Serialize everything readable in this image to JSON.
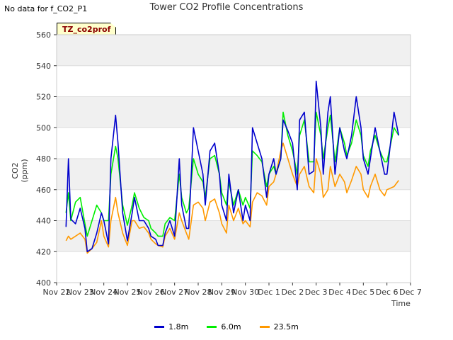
{
  "notice": "No data for f_CO2_P1",
  "tag": "TZ_co2prof",
  "chart_data": {
    "type": "line",
    "title": "Tower CO2 Profile Concentrations",
    "xlabel": "Time",
    "ylabel": "CO2 (ppm)",
    "ylim": [
      400,
      560
    ],
    "yticks": [
      400,
      420,
      440,
      460,
      480,
      500,
      520,
      540,
      560
    ],
    "xlim": [
      0,
      15
    ],
    "xtick_labels": [
      "Nov 22",
      "Nov 23",
      "Nov 24",
      "Nov 25",
      "Nov 26",
      "Nov 27",
      "Nov 28",
      "Nov 29",
      "Nov 30",
      "Dec 1",
      "Dec 2",
      "Dec 3",
      "Dec 4",
      "Dec 5",
      "Dec 6",
      "Dec 7"
    ],
    "grid": "horizontal bands",
    "legend_position": "bottom",
    "series": [
      {
        "name": "1.8m",
        "color": "#0000cc",
        "x": [
          0.4,
          0.5,
          0.6,
          0.8,
          1.0,
          1.2,
          1.3,
          1.5,
          1.7,
          1.9,
          2.0,
          2.2,
          2.3,
          2.5,
          2.6,
          2.8,
          3.0,
          3.2,
          3.3,
          3.5,
          3.7,
          3.9,
          4.0,
          4.2,
          4.3,
          4.5,
          4.6,
          4.8,
          5.0,
          5.2,
          5.3,
          5.5,
          5.6,
          5.8,
          6.0,
          6.2,
          6.3,
          6.5,
          6.7,
          6.9,
          7.0,
          7.2,
          7.3,
          7.5,
          7.7,
          7.9,
          8.0,
          8.2,
          8.3,
          8.5,
          8.7,
          8.9,
          9.0,
          9.2,
          9.3,
          9.5,
          9.6,
          9.8,
          10.0,
          10.2,
          10.3,
          10.5,
          10.7,
          10.9,
          11.0,
          11.2,
          11.3,
          11.5,
          11.6,
          11.8,
          12.0,
          12.2,
          12.3,
          12.5,
          12.7,
          12.9,
          13.0,
          13.2,
          13.3,
          13.5,
          13.7,
          13.9,
          14.0,
          14.3,
          14.5
        ],
        "values": [
          436,
          480,
          441,
          438,
          448,
          435,
          420,
          422,
          432,
          445,
          440,
          425,
          480,
          508,
          490,
          445,
          427,
          445,
          455,
          440,
          440,
          435,
          430,
          428,
          424,
          424,
          432,
          440,
          430,
          480,
          450,
          435,
          435,
          500,
          485,
          470,
          450,
          485,
          490,
          470,
          450,
          440,
          470,
          445,
          460,
          440,
          450,
          440,
          500,
          490,
          480,
          455,
          470,
          480,
          470,
          480,
          505,
          498,
          490,
          460,
          505,
          510,
          470,
          472,
          530,
          500,
          470,
          510,
          520,
          470,
          500,
          485,
          480,
          495,
          520,
          500,
          480,
          470,
          480,
          500,
          485,
          470,
          470,
          510,
          495
        ]
      },
      {
        "name": "6.0m",
        "color": "#00ee00",
        "x": [
          0.4,
          0.5,
          0.6,
          0.8,
          1.0,
          1.2,
          1.3,
          1.5,
          1.7,
          1.9,
          2.0,
          2.2,
          2.3,
          2.5,
          2.6,
          2.8,
          3.0,
          3.2,
          3.3,
          3.5,
          3.7,
          3.9,
          4.0,
          4.2,
          4.3,
          4.5,
          4.6,
          4.8,
          5.0,
          5.2,
          5.3,
          5.5,
          5.6,
          5.8,
          6.0,
          6.2,
          6.3,
          6.5,
          6.7,
          6.9,
          7.0,
          7.2,
          7.3,
          7.5,
          7.7,
          7.9,
          8.0,
          8.2,
          8.3,
          8.5,
          8.7,
          8.9,
          9.0,
          9.2,
          9.3,
          9.5,
          9.6,
          9.8,
          10.0,
          10.2,
          10.3,
          10.5,
          10.7,
          10.9,
          11.0,
          11.2,
          11.3,
          11.5,
          11.6,
          11.8,
          12.0,
          12.2,
          12.3,
          12.5,
          12.7,
          12.9,
          13.0,
          13.2,
          13.3,
          13.5,
          13.7,
          13.9,
          14.0,
          14.3,
          14.5
        ],
        "values": [
          445,
          458,
          440,
          452,
          455,
          438,
          430,
          440,
          450,
          445,
          440,
          440,
          470,
          488,
          480,
          450,
          437,
          450,
          458,
          448,
          442,
          440,
          435,
          432,
          430,
          430,
          438,
          442,
          440,
          470,
          455,
          445,
          448,
          480,
          470,
          465,
          455,
          480,
          482,
          470,
          458,
          450,
          465,
          450,
          460,
          450,
          455,
          448,
          485,
          482,
          478,
          462,
          470,
          475,
          470,
          480,
          510,
          495,
          485,
          470,
          495,
          505,
          478,
          478,
          510,
          495,
          480,
          500,
          508,
          478,
          500,
          490,
          482,
          490,
          505,
          495,
          482,
          475,
          485,
          495,
          485,
          478,
          478,
          500,
          495
        ]
      },
      {
        "name": "23.5m",
        "color": "#ff9900",
        "x": [
          0.4,
          0.5,
          0.6,
          0.8,
          1.0,
          1.2,
          1.3,
          1.5,
          1.7,
          1.9,
          2.0,
          2.2,
          2.3,
          2.5,
          2.6,
          2.8,
          3.0,
          3.2,
          3.3,
          3.5,
          3.7,
          3.9,
          4.0,
          4.2,
          4.3,
          4.5,
          4.6,
          4.8,
          5.0,
          5.2,
          5.3,
          5.5,
          5.6,
          5.8,
          6.0,
          6.2,
          6.3,
          6.5,
          6.7,
          6.9,
          7.0,
          7.2,
          7.3,
          7.5,
          7.7,
          7.9,
          8.0,
          8.2,
          8.3,
          8.5,
          8.7,
          8.9,
          9.0,
          9.2,
          9.3,
          9.5,
          9.6,
          9.8,
          10.0,
          10.2,
          10.3,
          10.5,
          10.7,
          10.9,
          11.0,
          11.2,
          11.3,
          11.5,
          11.6,
          11.8,
          12.0,
          12.2,
          12.3,
          12.5,
          12.7,
          12.9,
          13.0,
          13.2,
          13.3,
          13.5,
          13.7,
          13.9,
          14.0,
          14.3,
          14.5
        ],
        "values": [
          427,
          430,
          428,
          430,
          432,
          428,
          419,
          422,
          426,
          440,
          430,
          423,
          440,
          455,
          445,
          432,
          424,
          440,
          440,
          435,
          436,
          432,
          428,
          425,
          424,
          423,
          430,
          435,
          428,
          445,
          440,
          432,
          428,
          450,
          452,
          448,
          440,
          452,
          454,
          445,
          438,
          432,
          450,
          440,
          448,
          438,
          440,
          436,
          452,
          458,
          456,
          450,
          462,
          465,
          470,
          485,
          490,
          480,
          470,
          462,
          470,
          475,
          462,
          458,
          480,
          470,
          455,
          460,
          475,
          462,
          470,
          465,
          458,
          466,
          475,
          470,
          460,
          455,
          462,
          470,
          460,
          456,
          460,
          462,
          466
        ]
      }
    ]
  }
}
